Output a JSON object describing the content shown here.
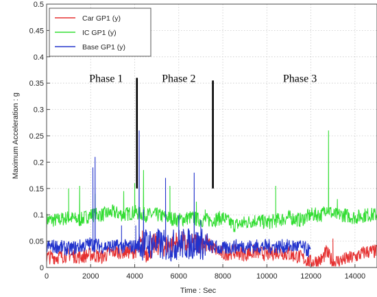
{
  "chart_data": {
    "type": "line",
    "title": "",
    "xlabel": "Time : Sec",
    "ylabel": "Maximum Acceleration : g",
    "xlim": [
      0,
      15000
    ],
    "ylim": [
      0,
      0.5
    ],
    "x_ticks": [
      0,
      2000,
      4000,
      6000,
      8000,
      10000,
      12000,
      14000
    ],
    "y_ticks": [
      0,
      0.05,
      0.1,
      0.15,
      0.2,
      0.25,
      0.3,
      0.35,
      0.4,
      0.45,
      0.5
    ],
    "x_tick_labels": [
      "0",
      "2000",
      "4000",
      "6000",
      "8000",
      "10000",
      "12000",
      "14000"
    ],
    "y_tick_labels": [
      "0",
      "0.05",
      "0.1",
      "0.15",
      "0.2",
      "0.25",
      "0.3",
      "0.35",
      "0.4",
      "0.45",
      "0.5"
    ],
    "grid": true,
    "legend_position": "top-left",
    "series": [
      {
        "name": "Car GP1 (y)",
        "color": "#e53030",
        "x": [
          0,
          500,
          1000,
          1500,
          2000,
          2500,
          3000,
          3500,
          4000,
          4300,
          4500,
          5000,
          5500,
          6000,
          6500,
          7000,
          7500,
          8000,
          8500,
          9000,
          9500,
          10000,
          10500,
          11000,
          11500,
          12000,
          12500,
          12700,
          13000,
          13500,
          14000,
          14500,
          15000
        ],
        "values": [
          0.02,
          0.02,
          0.025,
          0.02,
          0.025,
          0.02,
          0.03,
          0.03,
          0.03,
          0.04,
          0.03,
          0.045,
          0.04,
          0.05,
          0.04,
          0.05,
          0.04,
          0.025,
          0.03,
          0.025,
          0.03,
          0.025,
          0.03,
          0.025,
          0.02,
          0.01,
          0.015,
          0.03,
          0.01,
          0.015,
          0.02,
          0.03,
          0.03
        ],
        "spikes": [
          [
            4350,
            0.07
          ],
          [
            6900,
            0.06
          ],
          [
            9200,
            0.045
          ],
          [
            11000,
            0.04
          ],
          [
            13000,
            0.055
          ]
        ]
      },
      {
        "name": "IC GP1 (y)",
        "color": "#33dd33",
        "x": [
          0,
          500,
          1000,
          1500,
          2000,
          2500,
          3000,
          3500,
          4000,
          4500,
          5000,
          5500,
          6000,
          6500,
          7000,
          7500,
          8000,
          8500,
          9000,
          9500,
          10000,
          10500,
          11000,
          11500,
          12000,
          12500,
          12700,
          13000,
          13500,
          14000,
          14500,
          15000
        ],
        "values": [
          0.09,
          0.09,
          0.095,
          0.09,
          0.1,
          0.1,
          0.105,
          0.1,
          0.105,
          0.1,
          0.1,
          0.095,
          0.09,
          0.095,
          0.09,
          0.09,
          0.095,
          0.08,
          0.085,
          0.09,
          0.085,
          0.09,
          0.095,
          0.09,
          0.1,
          0.1,
          0.115,
          0.1,
          0.1,
          0.095,
          0.1,
          0.1
        ],
        "spikes": [
          [
            1000,
            0.15
          ],
          [
            1500,
            0.155
          ],
          [
            2200,
            0.14
          ],
          [
            3500,
            0.145
          ],
          [
            4000,
            0.16
          ],
          [
            4400,
            0.185
          ],
          [
            5600,
            0.155
          ],
          [
            6800,
            0.125
          ],
          [
            7200,
            0.11
          ],
          [
            10400,
            0.155
          ],
          [
            12800,
            0.26
          ],
          [
            13200,
            0.13
          ]
        ]
      },
      {
        "name": "Base GP1 (y)",
        "color": "#2233cc",
        "x": [
          0,
          500,
          1000,
          1500,
          2000,
          2500,
          3000,
          3500,
          4000,
          4500,
          5000,
          5500,
          6000,
          6500,
          7000,
          7500,
          8000,
          8500,
          9000,
          9500,
          10000,
          10500,
          11000,
          11500,
          12000
        ],
        "values": [
          0.04,
          0.04,
          0.035,
          0.04,
          0.045,
          0.04,
          0.04,
          0.04,
          0.04,
          0.045,
          0.045,
          0.04,
          0.045,
          0.045,
          0.045,
          0.04,
          0.035,
          0.04,
          0.04,
          0.04,
          0.04,
          0.04,
          0.04,
          0.04,
          0.03
        ],
        "spikes": [
          [
            2100,
            0.19
          ],
          [
            2200,
            0.21
          ],
          [
            3400,
            0.08
          ],
          [
            4050,
            0.08
          ],
          [
            4200,
            0.26
          ],
          [
            4400,
            0.11
          ],
          [
            5400,
            0.17
          ],
          [
            6000,
            0.1
          ],
          [
            6700,
            0.18
          ],
          [
            7000,
            0.09
          ],
          [
            7300,
            0.06
          ]
        ]
      }
    ],
    "annotations": [
      {
        "type": "text",
        "text": "Phase 1",
        "x": 2700,
        "y": 0.352
      },
      {
        "type": "text",
        "text": "Phase 2",
        "x": 6000,
        "y": 0.352
      },
      {
        "type": "text",
        "text": "Phase 3",
        "x": 11500,
        "y": 0.352
      },
      {
        "type": "vline",
        "x": 4100,
        "y0": 0.15,
        "y1": 0.36
      },
      {
        "type": "vline",
        "x": 7550,
        "y0": 0.15,
        "y1": 0.355
      }
    ]
  },
  "colors": {
    "background": "#ffffff",
    "grid": "#c8c8c8",
    "axis": "#444444",
    "legend_border": "#555555"
  }
}
